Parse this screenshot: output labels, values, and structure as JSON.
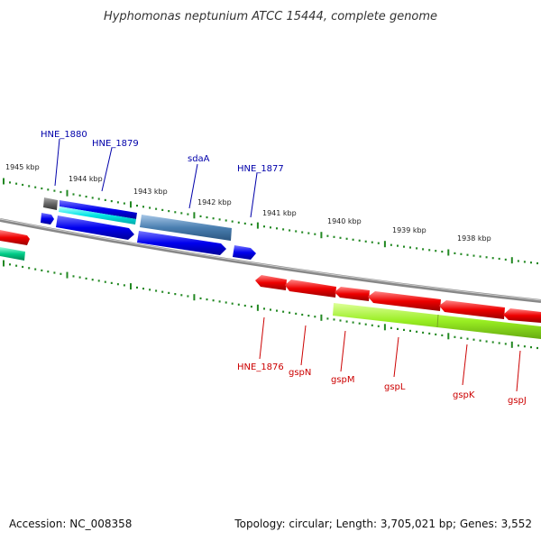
{
  "title": "Hyphomonas neptunium ATCC 15444, complete genome",
  "footer": {
    "accession": "Accession: NC_008358",
    "summary": "Topology: circular; Length: 3,705,021 bp; Genes: 3,552"
  },
  "scale_labels": [
    "1945 kbp",
    "1944 kbp",
    "1943 kbp",
    "1942 kbp",
    "1941 kbp",
    "1940 kbp",
    "1939 kbp",
    "1938 kbp"
  ],
  "genes_top": [
    {
      "label": "HNE_1880",
      "color": "#0000aa"
    },
    {
      "label": "HNE_1879",
      "color": "#0000aa"
    },
    {
      "label": "sdaA",
      "color": "#0000aa"
    },
    {
      "label": "HNE_1877",
      "color": "#0000aa"
    }
  ],
  "genes_bottom": [
    {
      "label": "HNE_1876",
      "color": "#cc0000"
    },
    {
      "label": "gspN",
      "color": "#cc0000"
    },
    {
      "label": "gspM",
      "color": "#cc0000"
    },
    {
      "label": "gspL",
      "color": "#cc0000"
    },
    {
      "label": "gspK",
      "color": "#cc0000"
    },
    {
      "label": "gspJ",
      "color": "#cc0000"
    }
  ],
  "colors": {
    "forward_gene": "#0000ee",
    "reverse_gene": "#ee0000",
    "rna_gene": "#4a7fb0",
    "cyan_feature": "#00e5e5",
    "green_feature": "#99ee22",
    "teal_feature": "#00cc88",
    "backbone": "#888888",
    "tick": "#228822"
  }
}
